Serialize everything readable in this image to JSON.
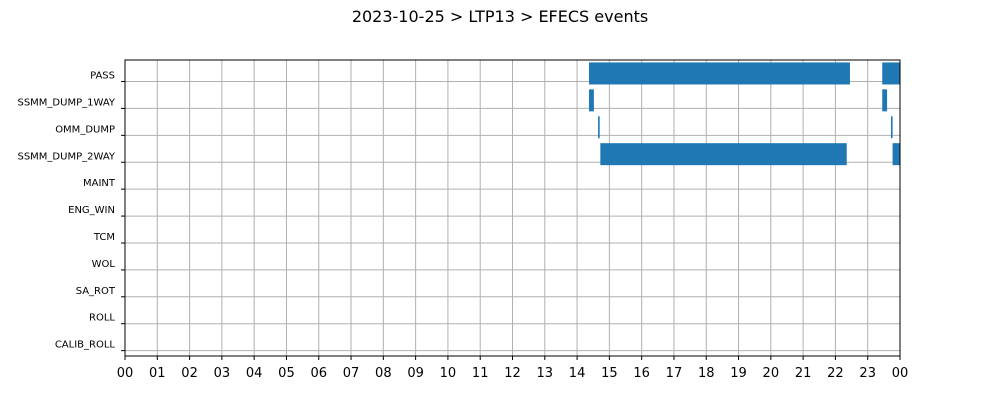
{
  "chart_data": {
    "type": "bar",
    "orientation": "horizontal-timeline",
    "title": "2023-10-25 > LTP13 > EFECS events",
    "xlabel": "",
    "ylabel": "",
    "x_ticks": [
      "00",
      "01",
      "02",
      "03",
      "04",
      "05",
      "06",
      "07",
      "08",
      "09",
      "10",
      "11",
      "12",
      "13",
      "14",
      "15",
      "16",
      "17",
      "18",
      "19",
      "20",
      "21",
      "22",
      "23",
      "00"
    ],
    "xlim": [
      0,
      24
    ],
    "grid": true,
    "bar_color": "#1f77b4",
    "categories": [
      "PASS",
      "SSMM_DUMP_1WAY",
      "OMM_DUMP",
      "SSMM_DUMP_2WAY",
      "MAINT",
      "ENG_WIN",
      "TCM",
      "WOL",
      "SA_ROT",
      "ROLL",
      "CALIB_ROLL"
    ],
    "series": [
      {
        "category": "PASS",
        "intervals": [
          [
            14.37,
            22.45
          ],
          [
            23.45,
            24.0
          ]
        ]
      },
      {
        "category": "SSMM_DUMP_1WAY",
        "intervals": [
          [
            14.37,
            14.52
          ],
          [
            23.45,
            23.6
          ]
        ]
      },
      {
        "category": "OMM_DUMP",
        "intervals": [
          [
            14.65,
            14.7
          ],
          [
            23.72,
            23.77
          ]
        ]
      },
      {
        "category": "SSMM_DUMP_2WAY",
        "intervals": [
          [
            14.72,
            22.35
          ],
          [
            23.77,
            24.0
          ]
        ]
      },
      {
        "category": "MAINT",
        "intervals": []
      },
      {
        "category": "ENG_WIN",
        "intervals": []
      },
      {
        "category": "TCM",
        "intervals": []
      },
      {
        "category": "WOL",
        "intervals": []
      },
      {
        "category": "SA_ROT",
        "intervals": []
      },
      {
        "category": "ROLL",
        "intervals": []
      },
      {
        "category": "CALIB_ROLL",
        "intervals": []
      }
    ]
  }
}
